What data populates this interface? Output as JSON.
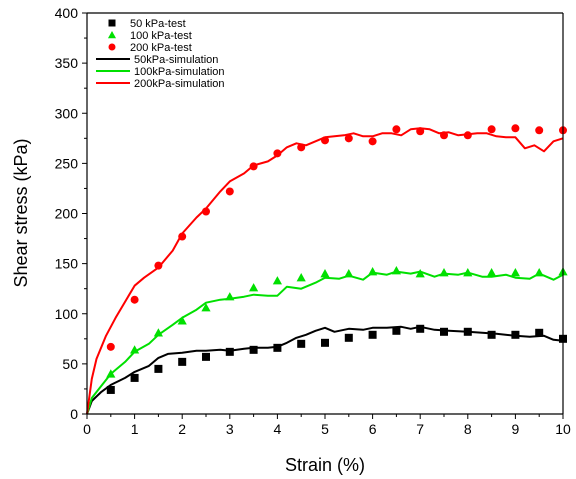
{
  "chart_data": {
    "type": "line",
    "xlabel": "Strain (%)",
    "ylabel": "Shear stress (kPa)",
    "xlim": [
      0,
      10
    ],
    "ylim": [
      0,
      400
    ],
    "xticks": [
      0,
      1,
      2,
      3,
      4,
      5,
      6,
      7,
      8,
      9,
      10
    ],
    "yticks": [
      0,
      50,
      100,
      150,
      200,
      250,
      300,
      350,
      400
    ],
    "grid": false,
    "legend_position": "top-left",
    "test_series": [
      {
        "name": "50 kPa-test",
        "marker": "square",
        "color": "#000000",
        "x": [
          0.5,
          1,
          1.5,
          2,
          2.5,
          3,
          3.5,
          4,
          4.5,
          5,
          5.5,
          6,
          6.5,
          7,
          7.5,
          8,
          8.5,
          9,
          9.5,
          10
        ],
        "y": [
          24,
          36,
          45,
          52,
          57,
          62,
          64,
          66,
          70,
          71,
          76,
          79,
          83,
          85,
          82,
          82,
          79,
          79,
          81,
          75
        ]
      },
      {
        "name": "100 kPa-test",
        "marker": "triangle",
        "color": "#00e000",
        "x": [
          0.5,
          1,
          1.5,
          2,
          2.5,
          3,
          3.5,
          4,
          4.5,
          5,
          5.5,
          6,
          6.5,
          7,
          7.5,
          8,
          8.5,
          9,
          9.5,
          10
        ],
        "y": [
          40,
          64,
          81,
          93,
          106,
          117,
          126,
          133,
          136,
          140,
          140,
          142,
          143,
          140,
          141,
          141,
          141,
          141,
          141,
          142
        ]
      },
      {
        "name": "200 kPa-test",
        "marker": "circle",
        "color": "#ff0000",
        "x": [
          0.5,
          1,
          1.5,
          2,
          2.5,
          3,
          3.5,
          4,
          4.5,
          5,
          5.5,
          6,
          6.5,
          7,
          7.5,
          8,
          8.5,
          9,
          9.5,
          10
        ],
        "y": [
          67,
          114,
          148,
          177,
          202,
          222,
          247,
          260,
          266,
          273,
          275,
          272,
          284,
          282,
          278,
          278,
          284,
          285,
          283,
          283
        ]
      }
    ],
    "simulation_series": [
      {
        "name": "50kPa-simulation",
        "color": "#000000",
        "x": [
          0,
          0.1,
          0.3,
          0.5,
          0.8,
          1,
          1.3,
          1.5,
          1.7,
          2,
          2.3,
          2.5,
          2.8,
          3,
          3.3,
          3.5,
          3.8,
          4,
          4.2,
          4.4,
          4.6,
          4.8,
          5,
          5.2,
          5.5,
          5.8,
          6,
          6.3,
          6.6,
          6.8,
          7,
          7.3,
          7.6,
          8,
          8.3,
          8.6,
          9,
          9.3,
          9.6,
          9.8,
          10
        ],
        "y": [
          0,
          13,
          22,
          29,
          36,
          42,
          48,
          56,
          60,
          61,
          63,
          63,
          64,
          63,
          65,
          66,
          66,
          67,
          71,
          76,
          79,
          83,
          86,
          82,
          85,
          84,
          86,
          86,
          87,
          85,
          87,
          84,
          83,
          82,
          81,
          80,
          78,
          77,
          78,
          74,
          73
        ]
      },
      {
        "name": "100kPa-simulation",
        "color": "#00e000",
        "x": [
          0,
          0.1,
          0.3,
          0.5,
          0.8,
          1,
          1.3,
          1.5,
          1.8,
          2,
          2.3,
          2.5,
          2.8,
          3,
          3.3,
          3.5,
          3.8,
          4,
          4.2,
          4.5,
          4.8,
          5,
          5.3,
          5.5,
          5.8,
          6,
          6.3,
          6.5,
          6.8,
          7,
          7.3,
          7.5,
          7.8,
          8,
          8.3,
          8.5,
          8.8,
          9,
          9.3,
          9.5,
          9.8,
          10
        ],
        "y": [
          0,
          16,
          28,
          40,
          52,
          62,
          70,
          79,
          89,
          96,
          104,
          111,
          114,
          115,
          117,
          119,
          118,
          118,
          127,
          125,
          131,
          136,
          135,
          138,
          134,
          141,
          139,
          142,
          140,
          142,
          137,
          140,
          139,
          141,
          137,
          137,
          139,
          136,
          135,
          140,
          134,
          139
        ]
      },
      {
        "name": "200kPa-simulation",
        "color": "#ff0000",
        "x": [
          0,
          0.1,
          0.2,
          0.4,
          0.6,
          0.8,
          1,
          1.2,
          1.5,
          1.8,
          2,
          2.3,
          2.5,
          2.8,
          3,
          3.3,
          3.5,
          3.8,
          4,
          4.2,
          4.4,
          4.6,
          4.8,
          5,
          5.2,
          5.4,
          5.6,
          5.8,
          6,
          6.2,
          6.4,
          6.6,
          6.8,
          7,
          7.2,
          7.4,
          7.6,
          7.8,
          8,
          8.2,
          8.4,
          8.6,
          8.8,
          9,
          9.2,
          9.4,
          9.6,
          9.8,
          10
        ],
        "y": [
          0,
          35,
          55,
          78,
          96,
          112,
          128,
          136,
          146,
          163,
          180,
          196,
          205,
          222,
          232,
          240,
          248,
          252,
          258,
          266,
          270,
          268,
          272,
          276,
          277,
          278,
          280,
          277,
          277,
          280,
          280,
          278,
          284,
          285,
          284,
          280,
          281,
          278,
          279,
          280,
          280,
          277,
          276,
          276,
          265,
          268,
          262,
          272,
          275
        ]
      }
    ]
  }
}
